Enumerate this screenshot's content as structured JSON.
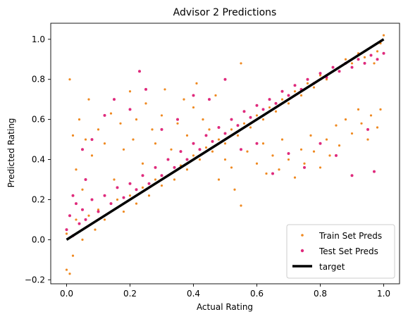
{
  "chart_data": {
    "type": "scatter",
    "title": "Advisor 2 Predictions",
    "xlabel": "Actual Rating",
    "ylabel": "Predicted Rating",
    "xlim": [
      -0.05,
      1.05
    ],
    "ylim": [
      -0.22,
      1.08
    ],
    "xticks": [
      "0.0",
      "0.2",
      "0.4",
      "0.6",
      "0.8",
      "1.0"
    ],
    "yticks": [
      "−0.2",
      "0.0",
      "0.2",
      "0.4",
      "0.6",
      "0.8",
      "1.0"
    ],
    "grid": false,
    "legend_position": "lower right",
    "series": [
      {
        "name": "Train Set Preds",
        "kind": "scatter",
        "color": "#ef8a22",
        "points": [
          [
            0.0,
            0.03
          ],
          [
            0.01,
            0.8
          ],
          [
            0.02,
            0.52
          ],
          [
            0.03,
            0.35
          ],
          [
            0.04,
            0.6
          ],
          [
            0.05,
            0.25
          ],
          [
            0.06,
            0.5
          ],
          [
            0.07,
            0.7
          ],
          [
            0.08,
            0.42
          ],
          [
            0.1,
            0.55
          ],
          [
            0.12,
            0.48
          ],
          [
            0.14,
            0.63
          ],
          [
            0.15,
            0.3
          ],
          [
            0.17,
            0.58
          ],
          [
            0.18,
            0.45
          ],
          [
            0.2,
            0.74
          ],
          [
            0.21,
            0.5
          ],
          [
            0.22,
            0.6
          ],
          [
            0.24,
            0.38
          ],
          [
            0.25,
            0.68
          ],
          [
            0.27,
            0.55
          ],
          [
            0.28,
            0.48
          ],
          [
            0.3,
            0.62
          ],
          [
            0.31,
            0.75
          ],
          [
            0.33,
            0.45
          ],
          [
            0.35,
            0.58
          ],
          [
            0.37,
            0.7
          ],
          [
            0.38,
            0.52
          ],
          [
            0.4,
            0.66
          ],
          [
            0.41,
            0.78
          ],
          [
            0.43,
            0.6
          ],
          [
            0.45,
            0.55
          ],
          [
            0.47,
            0.72
          ],
          [
            0.48,
            0.3
          ],
          [
            0.5,
            0.4
          ],
          [
            0.52,
            0.36
          ],
          [
            0.53,
            0.25
          ],
          [
            0.55,
            0.88
          ],
          [
            0.55,
            0.17
          ],
          [
            0.57,
            0.44
          ],
          [
            0.6,
            0.38
          ],
          [
            0.62,
            0.48
          ],
          [
            0.63,
            0.33
          ],
          [
            0.65,
            0.42
          ],
          [
            0.67,
            0.35
          ],
          [
            0.68,
            0.5
          ],
          [
            0.7,
            0.4
          ],
          [
            0.72,
            0.31
          ],
          [
            0.74,
            0.45
          ],
          [
            0.75,
            0.38
          ],
          [
            0.77,
            0.52
          ],
          [
            0.78,
            0.44
          ],
          [
            0.8,
            0.36
          ],
          [
            0.82,
            0.5
          ],
          [
            0.83,
            0.42
          ],
          [
            0.85,
            0.57
          ],
          [
            0.86,
            0.47
          ],
          [
            0.88,
            0.6
          ],
          [
            0.9,
            0.53
          ],
          [
            0.92,
            0.65
          ],
          [
            0.93,
            0.58
          ],
          [
            0.95,
            0.5
          ],
          [
            0.96,
            0.62
          ],
          [
            0.98,
            0.56
          ],
          [
            0.99,
            0.65
          ],
          [
            0.0,
            -0.15
          ],
          [
            0.01,
            -0.17
          ],
          [
            0.02,
            -0.08
          ],
          [
            0.03,
            0.1
          ],
          [
            0.05,
            0.0
          ],
          [
            0.07,
            0.12
          ],
          [
            0.09,
            0.05
          ],
          [
            0.1,
            0.15
          ],
          [
            0.12,
            0.1
          ],
          [
            0.14,
            0.18
          ],
          [
            0.16,
            0.2
          ],
          [
            0.18,
            0.14
          ],
          [
            0.2,
            0.22
          ],
          [
            0.22,
            0.18
          ],
          [
            0.24,
            0.26
          ],
          [
            0.26,
            0.22
          ],
          [
            0.28,
            0.3
          ],
          [
            0.3,
            0.27
          ],
          [
            0.32,
            0.32
          ],
          [
            0.34,
            0.3
          ],
          [
            0.36,
            0.37
          ],
          [
            0.38,
            0.35
          ],
          [
            0.4,
            0.42
          ],
          [
            0.42,
            0.4
          ],
          [
            0.44,
            0.46
          ],
          [
            0.46,
            0.44
          ],
          [
            0.48,
            0.5
          ],
          [
            0.5,
            0.48
          ],
          [
            0.52,
            0.55
          ],
          [
            0.54,
            0.52
          ],
          [
            0.56,
            0.58
          ],
          [
            0.58,
            0.56
          ],
          [
            0.6,
            0.62
          ],
          [
            0.62,
            0.6
          ],
          [
            0.64,
            0.66
          ],
          [
            0.66,
            0.64
          ],
          [
            0.68,
            0.7
          ],
          [
            0.7,
            0.68
          ],
          [
            0.72,
            0.74
          ],
          [
            0.74,
            0.72
          ],
          [
            0.76,
            0.78
          ],
          [
            0.78,
            0.76
          ],
          [
            0.8,
            0.82
          ],
          [
            0.82,
            0.8
          ],
          [
            0.84,
            0.86
          ],
          [
            0.86,
            0.84
          ],
          [
            0.88,
            0.9
          ],
          [
            0.9,
            0.88
          ],
          [
            0.92,
            0.93
          ],
          [
            0.94,
            0.91
          ],
          [
            0.96,
            0.96
          ],
          [
            0.98,
            0.94
          ],
          [
            1.0,
            1.02
          ],
          [
            0.99,
            0.98
          ],
          [
            0.97,
            0.88
          ]
        ]
      },
      {
        "name": "Test Set Preds",
        "kind": "scatter",
        "color": "#df2a7c",
        "points": [
          [
            0.0,
            0.05
          ],
          [
            0.01,
            0.12
          ],
          [
            0.02,
            0.02
          ],
          [
            0.03,
            0.18
          ],
          [
            0.04,
            0.08
          ],
          [
            0.05,
            0.15
          ],
          [
            0.06,
            0.1
          ],
          [
            0.08,
            0.2
          ],
          [
            0.1,
            0.14
          ],
          [
            0.12,
            0.22
          ],
          [
            0.14,
            0.18
          ],
          [
            0.16,
            0.26
          ],
          [
            0.18,
            0.21
          ],
          [
            0.2,
            0.28
          ],
          [
            0.22,
            0.25
          ],
          [
            0.23,
            0.84
          ],
          [
            0.24,
            0.32
          ],
          [
            0.26,
            0.28
          ],
          [
            0.28,
            0.36
          ],
          [
            0.3,
            0.32
          ],
          [
            0.32,
            0.4
          ],
          [
            0.34,
            0.36
          ],
          [
            0.36,
            0.44
          ],
          [
            0.38,
            0.4
          ],
          [
            0.4,
            0.48
          ],
          [
            0.42,
            0.45
          ],
          [
            0.44,
            0.52
          ],
          [
            0.46,
            0.49
          ],
          [
            0.48,
            0.56
          ],
          [
            0.5,
            0.53
          ],
          [
            0.52,
            0.6
          ],
          [
            0.54,
            0.57
          ],
          [
            0.56,
            0.64
          ],
          [
            0.58,
            0.61
          ],
          [
            0.6,
            0.67
          ],
          [
            0.62,
            0.65
          ],
          [
            0.64,
            0.7
          ],
          [
            0.66,
            0.68
          ],
          [
            0.68,
            0.74
          ],
          [
            0.7,
            0.72
          ],
          [
            0.72,
            0.77
          ],
          [
            0.74,
            0.75
          ],
          [
            0.76,
            0.8
          ],
          [
            0.78,
            0.78
          ],
          [
            0.8,
            0.83
          ],
          [
            0.82,
            0.81
          ],
          [
            0.84,
            0.86
          ],
          [
            0.86,
            0.84
          ],
          [
            0.88,
            0.88
          ],
          [
            0.9,
            0.86
          ],
          [
            0.92,
            0.9
          ],
          [
            0.94,
            0.88
          ],
          [
            0.96,
            0.92
          ],
          [
            0.98,
            0.9
          ],
          [
            1.0,
            0.93
          ],
          [
            0.12,
            0.62
          ],
          [
            0.25,
            0.75
          ],
          [
            0.3,
            0.55
          ],
          [
            0.35,
            0.6
          ],
          [
            0.45,
            0.7
          ],
          [
            0.55,
            0.45
          ],
          [
            0.6,
            0.48
          ],
          [
            0.7,
            0.43
          ],
          [
            0.8,
            0.48
          ],
          [
            0.85,
            0.42
          ],
          [
            0.9,
            0.32
          ],
          [
            0.95,
            0.55
          ],
          [
            0.97,
            0.34
          ],
          [
            0.65,
            0.33
          ],
          [
            0.75,
            0.36
          ],
          [
            0.05,
            0.45
          ],
          [
            0.08,
            0.5
          ],
          [
            0.15,
            0.7
          ],
          [
            0.2,
            0.65
          ],
          [
            0.4,
            0.72
          ],
          [
            0.5,
            0.8
          ],
          [
            0.02,
            0.22
          ],
          [
            0.06,
            0.3
          ]
        ]
      },
      {
        "name": "target",
        "kind": "line",
        "color": "#000000",
        "points": [
          [
            0.0,
            0.0
          ],
          [
            1.0,
            1.0
          ]
        ]
      }
    ]
  }
}
